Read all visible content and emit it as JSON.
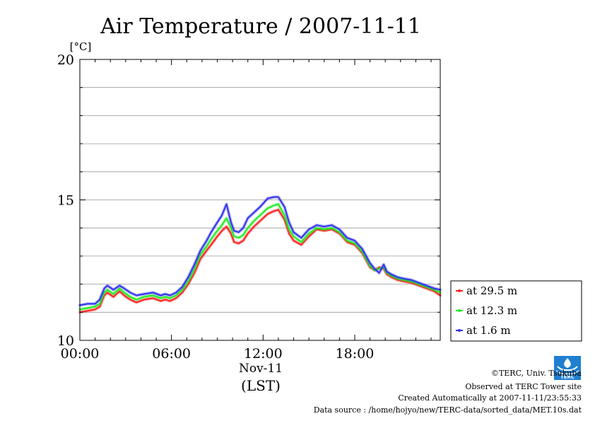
{
  "chart_data": {
    "type": "line",
    "title": "Air Temperature / 2007-11-11",
    "ylabel": "[°C]",
    "ylim": [
      10,
      20
    ],
    "yticks": [
      10,
      15,
      20
    ],
    "xlim": [
      0,
      23.6
    ],
    "xticks": [
      {
        "value": 0,
        "label": "00:00"
      },
      {
        "value": 6,
        "label": "06:00"
      },
      {
        "value": 12,
        "label": "12:00"
      },
      {
        "value": 18,
        "label": "18:00"
      }
    ],
    "xdate_label": "Nov-11",
    "xunit_label": "(LST)",
    "grid": true,
    "legend_position": "right-outside",
    "series": [
      {
        "name": "at 29.5 m",
        "color": "#ff2222",
        "x": [
          0,
          0.5,
          1,
          1.3,
          1.6,
          1.8,
          2.2,
          2.6,
          2.9,
          3.3,
          3.7,
          4.2,
          4.8,
          5.3,
          5.6,
          5.9,
          6.3,
          6.7,
          7.1,
          7.5,
          7.9,
          8.3,
          8.6,
          9.0,
          9.3,
          9.6,
          9.9,
          10.1,
          10.4,
          10.7,
          11.0,
          11.4,
          11.8,
          12.3,
          12.7,
          13.0,
          13.4,
          13.7,
          14.0,
          14.5,
          15.0,
          15.5,
          16.0,
          16.5,
          17.0,
          17.5,
          18.0,
          18.5,
          19.0,
          19.3,
          19.6,
          19.9,
          20.1,
          20.4,
          20.8,
          21.2,
          21.7,
          22.2,
          22.7,
          23.2,
          23.6
        ],
        "y": [
          11.0,
          11.05,
          11.1,
          11.2,
          11.6,
          11.7,
          11.55,
          11.75,
          11.6,
          11.45,
          11.35,
          11.45,
          11.5,
          11.4,
          11.45,
          11.4,
          11.5,
          11.7,
          12.0,
          12.4,
          12.9,
          13.2,
          13.4,
          13.7,
          13.9,
          14.05,
          13.8,
          13.5,
          13.45,
          13.55,
          13.8,
          14.05,
          14.25,
          14.5,
          14.6,
          14.65,
          14.3,
          13.8,
          13.55,
          13.4,
          13.7,
          13.95,
          13.9,
          13.95,
          13.8,
          13.5,
          13.4,
          13.1,
          12.6,
          12.5,
          12.6,
          12.55,
          12.35,
          12.25,
          12.15,
          12.1,
          12.05,
          11.95,
          11.85,
          11.75,
          11.6
        ]
      },
      {
        "name": "at 12.3 m",
        "color": "#22ee22",
        "x": [
          0,
          0.5,
          1,
          1.3,
          1.6,
          1.8,
          2.2,
          2.6,
          2.9,
          3.3,
          3.7,
          4.2,
          4.8,
          5.3,
          5.6,
          5.9,
          6.3,
          6.7,
          7.1,
          7.5,
          7.9,
          8.3,
          8.6,
          9.0,
          9.3,
          9.6,
          9.9,
          10.1,
          10.4,
          10.7,
          11.0,
          11.4,
          11.8,
          12.3,
          12.7,
          13.0,
          13.4,
          13.7,
          14.0,
          14.5,
          15.0,
          15.5,
          16.0,
          16.5,
          17.0,
          17.5,
          18.0,
          18.5,
          19.0,
          19.3,
          19.6,
          19.9,
          20.1,
          20.4,
          20.8,
          21.2,
          21.7,
          22.2,
          22.7,
          23.2,
          23.6
        ],
        "y": [
          11.1,
          11.15,
          11.2,
          11.3,
          11.7,
          11.8,
          11.65,
          11.85,
          11.7,
          11.55,
          11.45,
          11.55,
          11.6,
          11.5,
          11.55,
          11.5,
          11.6,
          11.8,
          12.1,
          12.55,
          13.05,
          13.35,
          13.6,
          13.9,
          14.1,
          14.35,
          14.0,
          13.7,
          13.65,
          13.75,
          14.0,
          14.25,
          14.45,
          14.7,
          14.8,
          14.85,
          14.45,
          13.95,
          13.7,
          13.5,
          13.8,
          14.0,
          13.95,
          14.0,
          13.85,
          13.55,
          13.45,
          13.15,
          12.65,
          12.5,
          12.55,
          12.6,
          12.4,
          12.3,
          12.2,
          12.15,
          12.1,
          12.0,
          11.9,
          11.8,
          11.7
        ]
      },
      {
        "name": "at 1.6 m",
        "color": "#3333ee",
        "x": [
          0,
          0.5,
          1,
          1.3,
          1.6,
          1.8,
          2.2,
          2.6,
          2.9,
          3.3,
          3.7,
          4.2,
          4.8,
          5.3,
          5.6,
          5.9,
          6.3,
          6.7,
          7.1,
          7.5,
          7.9,
          8.3,
          8.6,
          9.0,
          9.3,
          9.6,
          9.9,
          10.1,
          10.4,
          10.7,
          11.0,
          11.4,
          11.8,
          12.3,
          12.7,
          13.0,
          13.4,
          13.7,
          14.0,
          14.5,
          15.0,
          15.5,
          16.0,
          16.5,
          17.0,
          17.5,
          18.0,
          18.5,
          19.0,
          19.3,
          19.6,
          19.9,
          20.1,
          20.4,
          20.8,
          21.2,
          21.7,
          22.2,
          22.7,
          23.2,
          23.6
        ],
        "y": [
          11.25,
          11.3,
          11.3,
          11.45,
          11.85,
          11.95,
          11.8,
          11.95,
          11.85,
          11.7,
          11.6,
          11.65,
          11.7,
          11.6,
          11.65,
          11.6,
          11.7,
          11.9,
          12.25,
          12.7,
          13.2,
          13.55,
          13.85,
          14.2,
          14.45,
          14.85,
          14.2,
          13.9,
          13.85,
          14.0,
          14.35,
          14.55,
          14.75,
          15.05,
          15.1,
          15.1,
          14.75,
          14.2,
          13.85,
          13.65,
          13.95,
          14.1,
          14.05,
          14.1,
          13.95,
          13.65,
          13.55,
          13.25,
          12.75,
          12.55,
          12.4,
          12.7,
          12.45,
          12.35,
          12.25,
          12.2,
          12.15,
          12.05,
          11.95,
          11.85,
          11.8
        ]
      }
    ]
  },
  "footer": {
    "copyright": "©TERC, Univ. Tsukuba",
    "observed": "Observed at TERC Tower site",
    "created": "Created Automatically at 2007-11-11/23:55:33",
    "source": "Data source : /home/hojyo/new/TERC-data/sorted_data/MET.10s.dat"
  },
  "logo": {
    "text": "TERC",
    "color": "#1f7fd0"
  }
}
